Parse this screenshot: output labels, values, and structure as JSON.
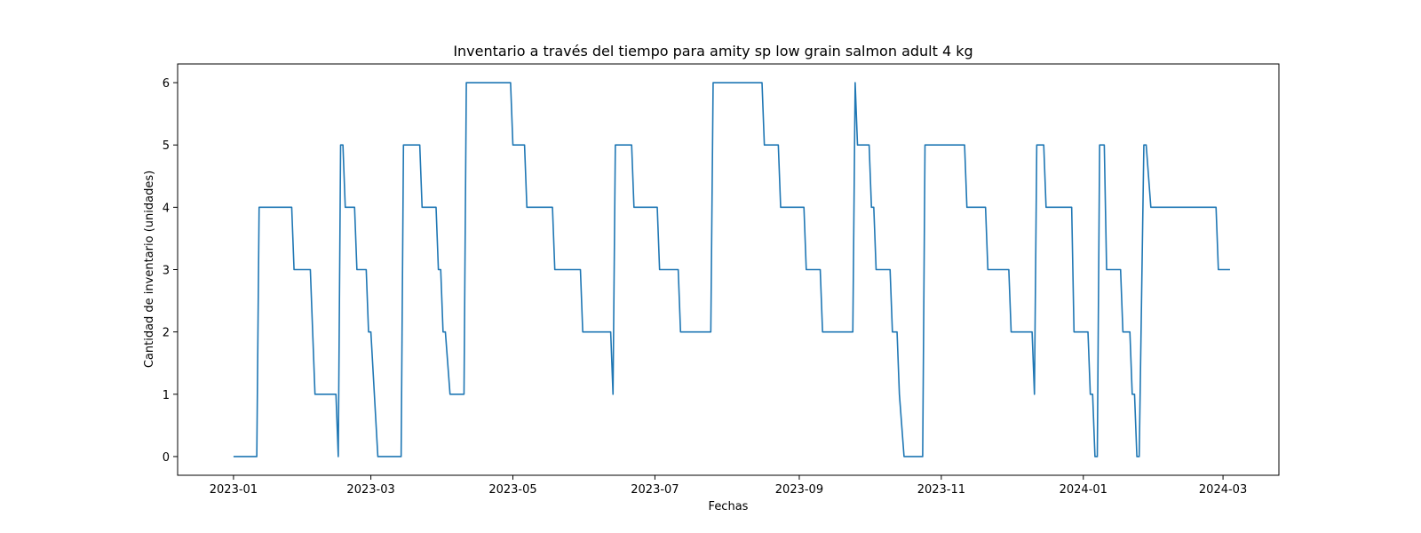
{
  "chart_data": {
    "type": "line",
    "title": "Inventario a través del tiempo para amity sp low grain salmon adult 4 kg",
    "xlabel": "Fechas",
    "ylabel": "Cantidad de inventario (unidades)",
    "x_type": "date",
    "xlim": [
      "2022-12-08",
      "2024-03-25"
    ],
    "ylim": [
      -0.3,
      6.3
    ],
    "x_ticks": [
      "2023-01-01",
      "2023-03-01",
      "2023-05-01",
      "2023-07-01",
      "2023-09-01",
      "2023-11-01",
      "2024-01-01",
      "2024-03-01"
    ],
    "x_tick_labels": [
      "2023-01",
      "2023-03",
      "2023-05",
      "2023-07",
      "2023-09",
      "2023-11",
      "2024-01",
      "2024-03"
    ],
    "y_ticks": [
      0,
      1,
      2,
      3,
      4,
      5,
      6
    ],
    "y_tick_labels": [
      "0",
      "1",
      "2",
      "3",
      "4",
      "5",
      "6"
    ],
    "grid": false,
    "color": "#1f77b4",
    "series": [
      {
        "x": [
          "2023-01-01",
          "2023-01-11",
          "2023-01-12",
          "2023-01-26",
          "2023-01-27",
          "2023-02-03",
          "2023-02-05",
          "2023-02-14",
          "2023-02-15",
          "2023-02-16",
          "2023-02-17",
          "2023-02-18",
          "2023-02-22",
          "2023-02-23",
          "2023-02-27",
          "2023-02-28",
          "2023-03-01",
          "2023-03-04",
          "2023-03-14",
          "2023-03-15",
          "2023-03-22",
          "2023-03-23",
          "2023-03-29",
          "2023-03-30",
          "2023-03-31",
          "2023-04-01",
          "2023-04-02",
          "2023-04-04",
          "2023-04-10",
          "2023-04-11",
          "2023-04-30",
          "2023-05-01",
          "2023-05-06",
          "2023-05-07",
          "2023-05-18",
          "2023-05-19",
          "2023-05-30",
          "2023-05-31",
          "2023-06-12",
          "2023-06-13",
          "2023-06-14",
          "2023-06-21",
          "2023-06-22",
          "2023-07-02",
          "2023-07-03",
          "2023-07-11",
          "2023-07-12",
          "2023-07-25",
          "2023-07-26",
          "2023-08-16",
          "2023-08-17",
          "2023-08-23",
          "2023-08-24",
          "2023-09-03",
          "2023-09-04",
          "2023-09-10",
          "2023-09-11",
          "2023-09-24",
          "2023-09-25",
          "2023-09-26",
          "2023-10-01",
          "2023-10-02",
          "2023-10-03",
          "2023-10-04",
          "2023-10-10",
          "2023-10-11",
          "2023-10-13",
          "2023-10-14",
          "2023-10-16",
          "2023-10-17",
          "2023-10-24",
          "2023-10-25",
          "2023-11-11",
          "2023-11-12",
          "2023-11-20",
          "2023-11-21",
          "2023-11-30",
          "2023-12-01",
          "2023-12-10",
          "2023-12-11",
          "2023-12-12",
          "2023-12-15",
          "2023-12-16",
          "2023-12-27",
          "2023-12-28",
          "2024-01-03",
          "2024-01-04",
          "2024-01-05",
          "2024-01-06",
          "2024-01-07",
          "2024-01-08",
          "2024-01-10",
          "2024-01-11",
          "2024-01-17",
          "2024-01-18",
          "2024-01-21",
          "2024-01-22",
          "2024-01-23",
          "2024-01-24",
          "2024-01-25",
          "2024-01-27",
          "2024-01-28",
          "2024-01-30",
          "2024-01-31",
          "2024-02-27",
          "2024-02-28",
          "2024-03-04"
        ],
        "values": [
          0,
          0,
          4,
          4,
          3,
          3,
          1,
          1,
          0,
          5,
          5,
          4,
          4,
          3,
          3,
          2,
          2,
          0,
          0,
          5,
          5,
          4,
          4,
          3,
          3,
          2,
          2,
          1,
          1,
          6,
          6,
          5,
          5,
          4,
          4,
          3,
          3,
          2,
          2,
          1,
          5,
          5,
          4,
          4,
          3,
          3,
          2,
          2,
          6,
          6,
          5,
          5,
          4,
          4,
          3,
          3,
          2,
          2,
          6,
          5,
          5,
          4,
          4,
          3,
          3,
          2,
          2,
          1,
          0,
          0,
          0,
          5,
          5,
          4,
          4,
          3,
          3,
          2,
          2,
          1,
          5,
          5,
          4,
          4,
          2,
          2,
          1,
          1,
          0,
          0,
          5,
          5,
          3,
          3,
          2,
          2,
          1,
          1,
          0,
          0,
          5,
          5,
          4,
          4,
          4,
          3,
          3
        ]
      }
    ]
  }
}
